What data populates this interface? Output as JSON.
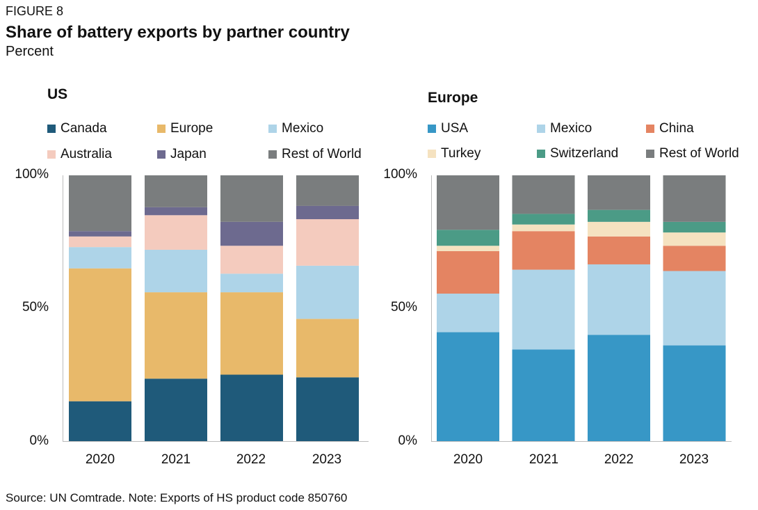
{
  "figure_label": "FIGURE 8",
  "title": "Share of battery exports by partner country",
  "subtitle": "Percent",
  "source": "Source: UN Comtrade. Note: Exports of HS product code 850760",
  "y_ticks": [
    "100%",
    "50%",
    "0%"
  ],
  "chart_data": [
    {
      "type": "bar",
      "stacked": true,
      "title": "US",
      "categories": [
        "2020",
        "2021",
        "2022",
        "2023"
      ],
      "ylim": [
        0,
        100
      ],
      "legend_placement": "top",
      "series": [
        {
          "name": "Canada",
          "color": "#1f5a7a",
          "values": [
            15,
            23.5,
            25,
            24
          ]
        },
        {
          "name": "Europe",
          "color": "#e8b96a",
          "values": [
            50,
            32.5,
            31,
            22
          ]
        },
        {
          "name": "Mexico",
          "color": "#aed4e8",
          "values": [
            8,
            16,
            7,
            20
          ]
        },
        {
          "name": "Australia",
          "color": "#f4cbbe",
          "values": [
            4,
            13,
            10.5,
            17.5
          ]
        },
        {
          "name": "Japan",
          "color": "#6d6a8f",
          "values": [
            2,
            3,
            9,
            5
          ]
        },
        {
          "name": "Rest of World",
          "color": "#7a7d7e",
          "values": [
            21,
            12,
            17.5,
            11.5
          ]
        }
      ]
    },
    {
      "type": "bar",
      "stacked": true,
      "title": "Europe",
      "categories": [
        "2020",
        "2021",
        "2022",
        "2023"
      ],
      "ylim": [
        0,
        100
      ],
      "legend_placement": "top",
      "series": [
        {
          "name": "USA",
          "color": "#3797c6",
          "values": [
            41,
            34.5,
            40,
            36
          ]
        },
        {
          "name": "Mexico",
          "color": "#aed4e8",
          "values": [
            14.5,
            30,
            26.5,
            28
          ]
        },
        {
          "name": "China",
          "color": "#e48462",
          "values": [
            16,
            14.5,
            10.5,
            9.5
          ]
        },
        {
          "name": "Turkey",
          "color": "#f5e2c0",
          "values": [
            2,
            2.5,
            5.5,
            5
          ]
        },
        {
          "name": "Switzerland",
          "color": "#4b9b86",
          "values": [
            6,
            4,
            4.5,
            4
          ]
        },
        {
          "name": "Rest of World",
          "color": "#7a7d7e",
          "values": [
            20.5,
            14.5,
            13,
            17.5
          ]
        }
      ]
    }
  ]
}
